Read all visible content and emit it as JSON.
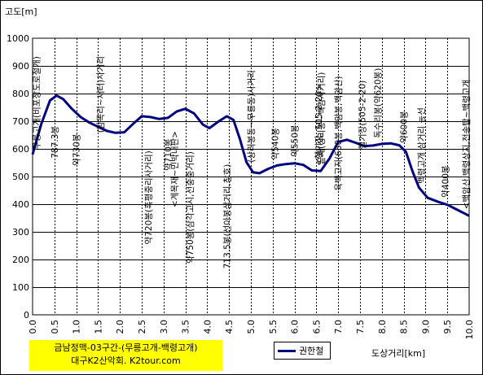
{
  "chart_data": {
    "type": "line",
    "ylabel": "고도[m]",
    "xlabel": "도상거리[km]",
    "ylim": [
      0,
      1000
    ],
    "yticks": [
      0,
      100,
      200,
      300,
      400,
      500,
      600,
      700,
      800,
      900,
      1000
    ],
    "xlim": [
      0,
      10
    ],
    "xticks": [
      "0.0",
      "0.5",
      "1.0",
      "1.5",
      "2.0",
      "2.5",
      "3.0",
      "3.5",
      "4.0",
      "4.5",
      "5.0",
      "5.5",
      "6.0",
      "6.5",
      "7.0",
      "7.5",
      "8.0",
      "8.5",
      "9.0",
      "9.5",
      "10.0"
    ],
    "grid": true,
    "legend_position": "bottom",
    "series": [
      {
        "name": "권한철",
        "color": "#000080",
        "points": [
          [
            0.0,
            580
          ],
          [
            0.2,
            690
          ],
          [
            0.4,
            775
          ],
          [
            0.55,
            793
          ],
          [
            0.7,
            780
          ],
          [
            0.9,
            745
          ],
          [
            1.1,
            715
          ],
          [
            1.3,
            695
          ],
          [
            1.5,
            680
          ],
          [
            1.7,
            665
          ],
          [
            1.9,
            658
          ],
          [
            2.1,
            660
          ],
          [
            2.3,
            690
          ],
          [
            2.5,
            718
          ],
          [
            2.7,
            715
          ],
          [
            2.9,
            708
          ],
          [
            3.1,
            712
          ],
          [
            3.3,
            735
          ],
          [
            3.5,
            745
          ],
          [
            3.7,
            728
          ],
          [
            3.9,
            688
          ],
          [
            4.05,
            675
          ],
          [
            4.25,
            698
          ],
          [
            4.45,
            718
          ],
          [
            4.6,
            705
          ],
          [
            4.75,
            635
          ],
          [
            4.9,
            552
          ],
          [
            5.05,
            515
          ],
          [
            5.2,
            512
          ],
          [
            5.4,
            528
          ],
          [
            5.6,
            540
          ],
          [
            5.8,
            545
          ],
          [
            6.0,
            548
          ],
          [
            6.2,
            542
          ],
          [
            6.4,
            522
          ],
          [
            6.6,
            520
          ],
          [
            6.8,
            565
          ],
          [
            7.0,
            625
          ],
          [
            7.2,
            633
          ],
          [
            7.4,
            622
          ],
          [
            7.6,
            610
          ],
          [
            7.8,
            612
          ],
          [
            8.0,
            618
          ],
          [
            8.2,
            620
          ],
          [
            8.4,
            613
          ],
          [
            8.55,
            590
          ],
          [
            8.7,
            520
          ],
          [
            8.85,
            460
          ],
          [
            9.05,
            423
          ],
          [
            9.3,
            408
          ],
          [
            9.5,
            398
          ],
          [
            9.7,
            382
          ],
          [
            10.0,
            358
          ]
        ]
      }
    ],
    "annotations": [
      {
        "x": 0.08,
        "text": "무릉고개(비포장도로절개)"
      },
      {
        "x": 0.5,
        "text": "787.3봉"
      },
      {
        "x": 1.0,
        "text": "약730봉"
      },
      {
        "x": 1.55,
        "text": "(밤목리~새터)사거리"
      },
      {
        "x": 2.65,
        "text": "약720봉(흑평중리사거리)"
      },
      {
        "x": 3.1,
        "text": "약710봉"
      },
      {
        "x": 3.25,
        "text": "<계목재~민박내판>"
      },
      {
        "x": 3.6,
        "text": "약750봉(삼각고시,선중중거리)"
      },
      {
        "x": 4.45,
        "text": "713.5봉(선아봉삼거리,참호)"
      },
      {
        "x": 5.0,
        "text": "(상리봉동~무릉동)사거리"
      },
      {
        "x": 5.55,
        "text": "약540봉"
      },
      {
        "x": 6.0,
        "text": "약550봉"
      },
      {
        "x": 6.55,
        "text": "<헬기장, 505-2-20>"
      },
      {
        "x": 6.6,
        "text": "끝재(상리봉~백암사거리)"
      },
      {
        "x": 7.0,
        "text": "육백고지(630봉,백암봉,백암산)"
      },
      {
        "x": 7.55,
        "text": "헬기장(505-2-20)"
      },
      {
        "x": 7.9,
        "text": "독수리봉(약620봉)"
      },
      {
        "x": 8.5,
        "text": "약600봉"
      },
      {
        "x": 8.9,
        "text": "백령고개 삼거리 능선"
      },
      {
        "x": 9.45,
        "text": "약400봉"
      },
      {
        "x": 10.0,
        "text": "<백암산,백령상지,전송탑~백령고개"
      }
    ]
  },
  "title_box": {
    "line1": "금남정맥-03구간-(무릉고개-백령고개)",
    "line2": "대구K2산악회. K2tour.com"
  }
}
